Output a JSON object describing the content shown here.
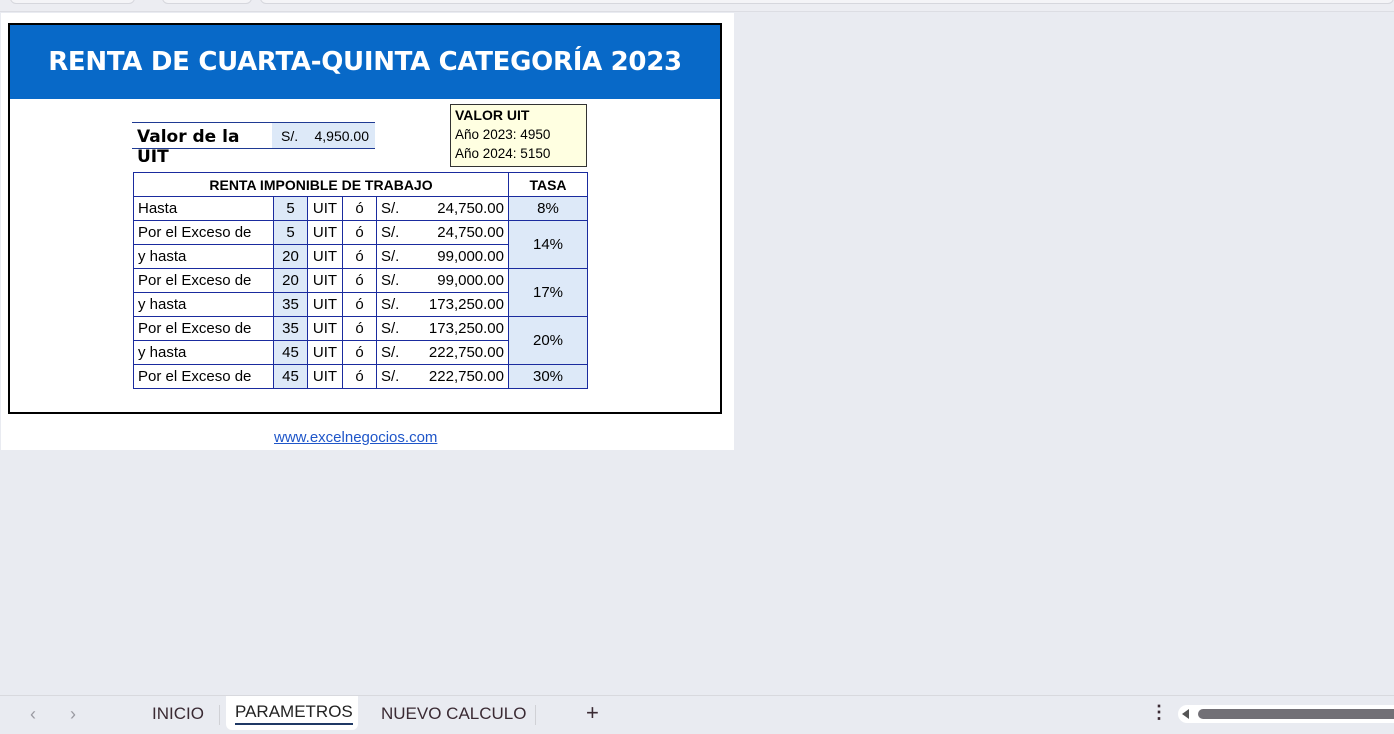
{
  "title": "RENTA DE CUARTA-QUINTA CATEGORÍA 2023",
  "uit": {
    "label": "Valor de la UIT",
    "currency": "S/.",
    "value": "4,950.00"
  },
  "comment": {
    "title": "VALOR UIT",
    "line1": "Año 2023: 4950",
    "line2": "Año 2024: 5150"
  },
  "table": {
    "header": [
      "RENTA IMPONIBLE DE TRABAJO",
      "TASA"
    ],
    "rows": [
      {
        "label": "Hasta",
        "uit": "5",
        "unit": "UIT",
        "or": "ó",
        "cur": "S/.",
        "amount": "24,750.00"
      },
      {
        "label": "Por el Exceso de",
        "uit": "5",
        "unit": "UIT",
        "or": "ó",
        "cur": "S/.",
        "amount": "24,750.00"
      },
      {
        "label": "y hasta",
        "uit": "20",
        "unit": "UIT",
        "or": "ó",
        "cur": "S/.",
        "amount": "99,000.00"
      },
      {
        "label": "Por el Exceso de",
        "uit": "20",
        "unit": "UIT",
        "or": "ó",
        "cur": "S/.",
        "amount": "99,000.00"
      },
      {
        "label": "y hasta",
        "uit": "35",
        "unit": "UIT",
        "or": "ó",
        "cur": "S/.",
        "amount": "173,250.00"
      },
      {
        "label": "Por el Exceso de",
        "uit": "35",
        "unit": "UIT",
        "or": "ó",
        "cur": "S/.",
        "amount": "173,250.00"
      },
      {
        "label": "y hasta",
        "uit": "45",
        "unit": "UIT",
        "or": "ó",
        "cur": "S/.",
        "amount": "222,750.00"
      },
      {
        "label": "Por el Exceso de",
        "uit": "45",
        "unit": "UIT",
        "or": "ó",
        "cur": "S/.",
        "amount": "222,750.00"
      }
    ],
    "rates": [
      "8%",
      "14%",
      "17%",
      "20%",
      "30%"
    ]
  },
  "link": "www.excelnegocios.com",
  "tabs": {
    "items": [
      "INICIO",
      "PARAMETROS",
      "NUEVO CALCULO"
    ],
    "active": "PARAMETROS",
    "add": "+",
    "prev": "‹",
    "next": "›",
    "more": "⋮"
  },
  "colors": {
    "banner": "#0869c8",
    "cell_fill": "#dde9f8",
    "border": "#1a2b9e"
  }
}
